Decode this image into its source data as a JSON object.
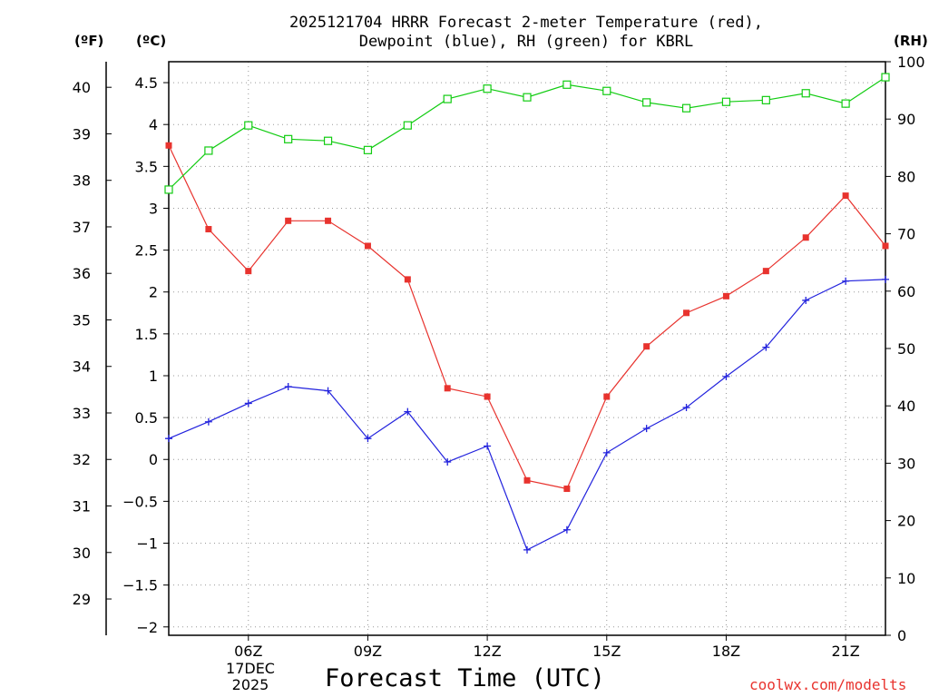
{
  "header": {
    "title_line1": "2025121704 HRRR Forecast 2-meter Temperature (red),",
    "title_line2": "Dewpoint (blue), RH (green) for KBRL",
    "unit_f": "(ºF)",
    "unit_c": "(ºC)",
    "unit_rh": "(RH)"
  },
  "footer": {
    "xlabel": "Forecast Time (UTC)",
    "credit": "coolwx.com/modelts",
    "date_day": "17DEC",
    "date_year": "2025"
  },
  "colors": {
    "temperature": "#e8332e",
    "dewpoint": "#2222dd",
    "rh": "#11cc11",
    "grid": "#999999"
  },
  "chart_data": {
    "type": "line",
    "title": "2025121704 HRRR Forecast 2-meter Temperature (red), Dewpoint (blue), RH (green) for KBRL",
    "xlabel": "Forecast Time (UTC)",
    "x_hours": [
      4,
      5,
      6,
      7,
      8,
      9,
      10,
      11,
      12,
      13,
      14,
      15,
      16,
      17,
      18,
      19,
      20,
      21,
      22
    ],
    "xlim": [
      4,
      22
    ],
    "x_ticks": [
      {
        "hour": 6,
        "label": "06Z"
      },
      {
        "hour": 9,
        "label": "09Z"
      },
      {
        "hour": 12,
        "label": "12Z"
      },
      {
        "hour": 15,
        "label": "15Z"
      },
      {
        "hour": 18,
        "label": "18Z"
      },
      {
        "hour": 21,
        "label": "21Z"
      }
    ],
    "axes": {
      "celsius": {
        "label": "(ºC)",
        "ylim": [
          -2.1,
          4.75
        ],
        "ticks": [
          -2,
          -1.5,
          -1,
          -0.5,
          0,
          0.5,
          1,
          1.5,
          2,
          2.5,
          3,
          3.5,
          4,
          4.5
        ],
        "tick_labels": [
          "−2",
          "−1.5",
          "−1",
          "−0.5",
          "0",
          "0.5",
          "1",
          "1.5",
          "2",
          "2.5",
          "3",
          "3.5",
          "4",
          "4.5"
        ]
      },
      "fahrenheit": {
        "label": "(ºF)",
        "ticks": [
          29,
          30,
          31,
          32,
          33,
          34,
          35,
          36,
          37,
          38,
          39,
          40
        ],
        "tick_labels": [
          "29",
          "30",
          "31",
          "32",
          "33",
          "34",
          "35",
          "36",
          "37",
          "38",
          "39",
          "40"
        ]
      },
      "rh": {
        "label": "(RH)",
        "ylim": [
          0,
          100
        ],
        "ticks": [
          0,
          10,
          20,
          30,
          40,
          50,
          60,
          70,
          80,
          90,
          100
        ],
        "tick_labels": [
          "0",
          "10",
          "20",
          "30",
          "40",
          "50",
          "60",
          "70",
          "80",
          "90",
          "100"
        ]
      }
    },
    "grid": true,
    "series": [
      {
        "name": "Temperature",
        "axis": "celsius",
        "marker": "filled-square",
        "values": [
          3.75,
          2.75,
          2.25,
          2.85,
          2.85,
          2.55,
          2.15,
          0.85,
          0.75,
          -0.25,
          -0.35,
          0.75,
          1.35,
          1.75,
          1.95,
          2.25,
          2.65,
          3.15,
          2.55
        ]
      },
      {
        "name": "Dewpoint",
        "axis": "celsius",
        "marker": "plus",
        "values": [
          0.25,
          0.45,
          0.67,
          0.87,
          0.82,
          0.25,
          0.57,
          -0.03,
          0.16,
          -1.08,
          -0.84,
          0.08,
          0.37,
          0.62,
          0.99,
          1.34,
          1.9,
          2.13,
          2.15
        ]
      },
      {
        "name": "RH",
        "axis": "rh",
        "marker": "open-square",
        "values": [
          77.7,
          84.5,
          88.9,
          86.5,
          86.2,
          84.6,
          88.9,
          93.5,
          95.3,
          93.8,
          96.0,
          94.9,
          92.9,
          91.9,
          93.0,
          93.3,
          94.5,
          92.7,
          97.3
        ]
      }
    ]
  }
}
